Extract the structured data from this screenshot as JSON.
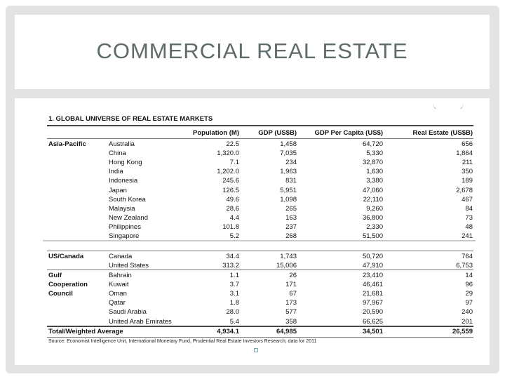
{
  "slide": {
    "title": "COMMERCIAL REAL ESTATE"
  },
  "table": {
    "title": "1. GLOBAL UNIVERSE OF REAL ESTATE MARKETS",
    "columns": [
      "Population (M)",
      "GDP (US$B)",
      "GDP Per Capita (US$)",
      "Real Estate (US$B)"
    ],
    "groups": [
      {
        "region": "Asia-Pacific",
        "rows": [
          [
            "Australia",
            "22.5",
            "1,458",
            "64,720",
            "656"
          ],
          [
            "China",
            "1,320.0",
            "7,035",
            "5,330",
            "1,864"
          ],
          [
            "Hong Kong",
            "7.1",
            "234",
            "32,870",
            "211"
          ],
          [
            "India",
            "1,202.0",
            "1,963",
            "1,630",
            "350"
          ],
          [
            "Indonesia",
            "245.6",
            "831",
            "3,380",
            "189"
          ],
          [
            "Japan",
            "126.5",
            "5,951",
            "47,060",
            "2,678"
          ],
          [
            "South Korea",
            "49.6",
            "1,098",
            "22,110",
            "467"
          ],
          [
            "Malaysia",
            "28.6",
            "265",
            "9,260",
            "84"
          ],
          [
            "New Zealand",
            "4.4",
            "163",
            "36,800",
            "73"
          ],
          [
            "Philippines",
            "101.8",
            "237",
            "2,330",
            "48"
          ],
          [
            "Singapore",
            "5.2",
            "268",
            "51,500",
            "241"
          ]
        ]
      },
      {
        "region": "US/Canada",
        "rows": [
          [
            "Canada",
            "34.4",
            "1,743",
            "50,720",
            "764"
          ],
          [
            "United States",
            "313.2",
            "15,006",
            "47,910",
            "6,753"
          ]
        ]
      },
      {
        "region": "Gulf Cooperation Council",
        "region_lines": [
          "Gulf",
          "Cooperation",
          "Council"
        ],
        "rows": [
          [
            "Bahrain",
            "1.1",
            "26",
            "23,410",
            "14"
          ],
          [
            "Kuwait",
            "3.7",
            "171",
            "46,461",
            "96"
          ],
          [
            "Oman",
            "3.1",
            "67",
            "21,681",
            "29"
          ],
          [
            "Qatar",
            "1.8",
            "173",
            "97,967",
            "97"
          ],
          [
            "Saudi Arabia",
            "28.0",
            "577",
            "20,590",
            "240"
          ],
          [
            "United Arab Emirates",
            "5.4",
            "358",
            "66,625",
            "201"
          ]
        ]
      }
    ],
    "total": {
      "label": "Total/Weighted Average",
      "values": [
        "4,934.1",
        "64,985",
        "34,501",
        "26,559"
      ]
    },
    "source": "Source: Economist Intelligence Unit, International Monetary Fund, Prudential Real Estate Investors Research; data for 2011"
  }
}
